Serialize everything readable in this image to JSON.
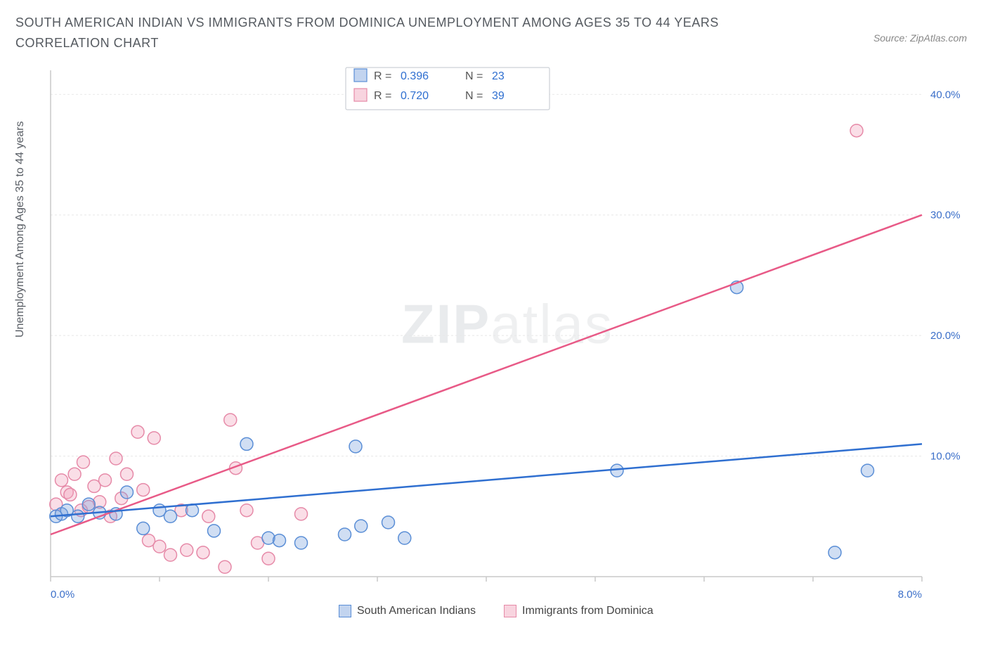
{
  "title": "SOUTH AMERICAN INDIAN VS IMMIGRANTS FROM DOMINICA UNEMPLOYMENT AMONG AGES 35 TO 44 YEARS CORRELATION CHART",
  "source": "Source: ZipAtlas.com",
  "y_axis_label": "Unemployment Among Ages 35 to 44 years",
  "watermark_a": "ZIP",
  "watermark_b": "atlas",
  "chart": {
    "type": "scatter",
    "background_color": "#ffffff",
    "grid_color": "#e8e8e8",
    "axis_color": "#c8c8c8",
    "xlim": [
      0,
      8
    ],
    "ylim": [
      0,
      42
    ],
    "x_ticks": [
      0,
      1,
      2,
      3,
      4,
      5,
      6,
      7,
      8
    ],
    "x_tick_labels": [
      "0.0%",
      "",
      "",
      "",
      "",
      "",
      "",
      "",
      "8.0%"
    ],
    "y_ticks": [
      10,
      20,
      30,
      40
    ],
    "y_tick_labels": [
      "10.0%",
      "20.0%",
      "30.0%",
      "40.0%"
    ],
    "marker_radius": 9,
    "line_width": 2.5,
    "series": [
      {
        "name": "South American Indians",
        "color_fill": "rgba(120,160,220,0.35)",
        "color_stroke": "#5a8ed6",
        "trend_color": "#2f6fd0",
        "R": "0.396",
        "N": "23",
        "points": [
          [
            0.05,
            5.0
          ],
          [
            0.1,
            5.2
          ],
          [
            0.15,
            5.5
          ],
          [
            0.25,
            5.0
          ],
          [
            0.35,
            6.0
          ],
          [
            0.45,
            5.3
          ],
          [
            0.6,
            5.2
          ],
          [
            0.7,
            7.0
          ],
          [
            0.85,
            4.0
          ],
          [
            1.0,
            5.5
          ],
          [
            1.1,
            5.0
          ],
          [
            1.3,
            5.5
          ],
          [
            1.5,
            3.8
          ],
          [
            1.8,
            11.0
          ],
          [
            2.0,
            3.2
          ],
          [
            2.1,
            3.0
          ],
          [
            2.3,
            2.8
          ],
          [
            2.8,
            10.8
          ],
          [
            2.85,
            4.2
          ],
          [
            2.7,
            3.5
          ],
          [
            3.1,
            4.5
          ],
          [
            3.25,
            3.2
          ],
          [
            5.2,
            8.8
          ],
          [
            6.3,
            24.0
          ],
          [
            7.2,
            2.0
          ],
          [
            7.5,
            8.8
          ]
        ],
        "trend": {
          "x1": 0.0,
          "y1": 5.0,
          "x2": 8.0,
          "y2": 11.0
        }
      },
      {
        "name": "Immigrants from Dominica",
        "color_fill": "rgba(240,160,185,0.35)",
        "color_stroke": "#e68aa8",
        "trend_color": "#e85a87",
        "R": "0.720",
        "N": "39",
        "points": [
          [
            0.05,
            6.0
          ],
          [
            0.1,
            8.0
          ],
          [
            0.15,
            7.0
          ],
          [
            0.18,
            6.8
          ],
          [
            0.22,
            8.5
          ],
          [
            0.28,
            5.5
          ],
          [
            0.3,
            9.5
          ],
          [
            0.35,
            5.8
          ],
          [
            0.4,
            7.5
          ],
          [
            0.45,
            6.2
          ],
          [
            0.5,
            8.0
          ],
          [
            0.55,
            5.0
          ],
          [
            0.6,
            9.8
          ],
          [
            0.65,
            6.5
          ],
          [
            0.7,
            8.5
          ],
          [
            0.8,
            12.0
          ],
          [
            0.85,
            7.2
          ],
          [
            0.9,
            3.0
          ],
          [
            0.95,
            11.5
          ],
          [
            1.0,
            2.5
          ],
          [
            1.1,
            1.8
          ],
          [
            1.2,
            5.5
          ],
          [
            1.25,
            2.2
          ],
          [
            1.4,
            2.0
          ],
          [
            1.45,
            5.0
          ],
          [
            1.6,
            0.8
          ],
          [
            1.65,
            13.0
          ],
          [
            1.7,
            9.0
          ],
          [
            1.8,
            5.5
          ],
          [
            1.9,
            2.8
          ],
          [
            2.0,
            1.5
          ],
          [
            2.3,
            5.2
          ],
          [
            7.4,
            37.0
          ]
        ],
        "trend": {
          "x1": 0.0,
          "y1": 3.5,
          "x2": 8.0,
          "y2": 30.0
        }
      }
    ],
    "stat_box": {
      "rows": [
        {
          "swatch": "blue",
          "r_label": "R =",
          "r_val": "0.396",
          "n_label": "N =",
          "n_val": "23"
        },
        {
          "swatch": "pink",
          "r_label": "R =",
          "r_val": "0.720",
          "n_label": "N =",
          "n_val": "39"
        }
      ]
    },
    "legend": [
      {
        "swatch": "blue",
        "label": "South American Indians"
      },
      {
        "swatch": "pink",
        "label": "Immigrants from Dominica"
      }
    ]
  }
}
